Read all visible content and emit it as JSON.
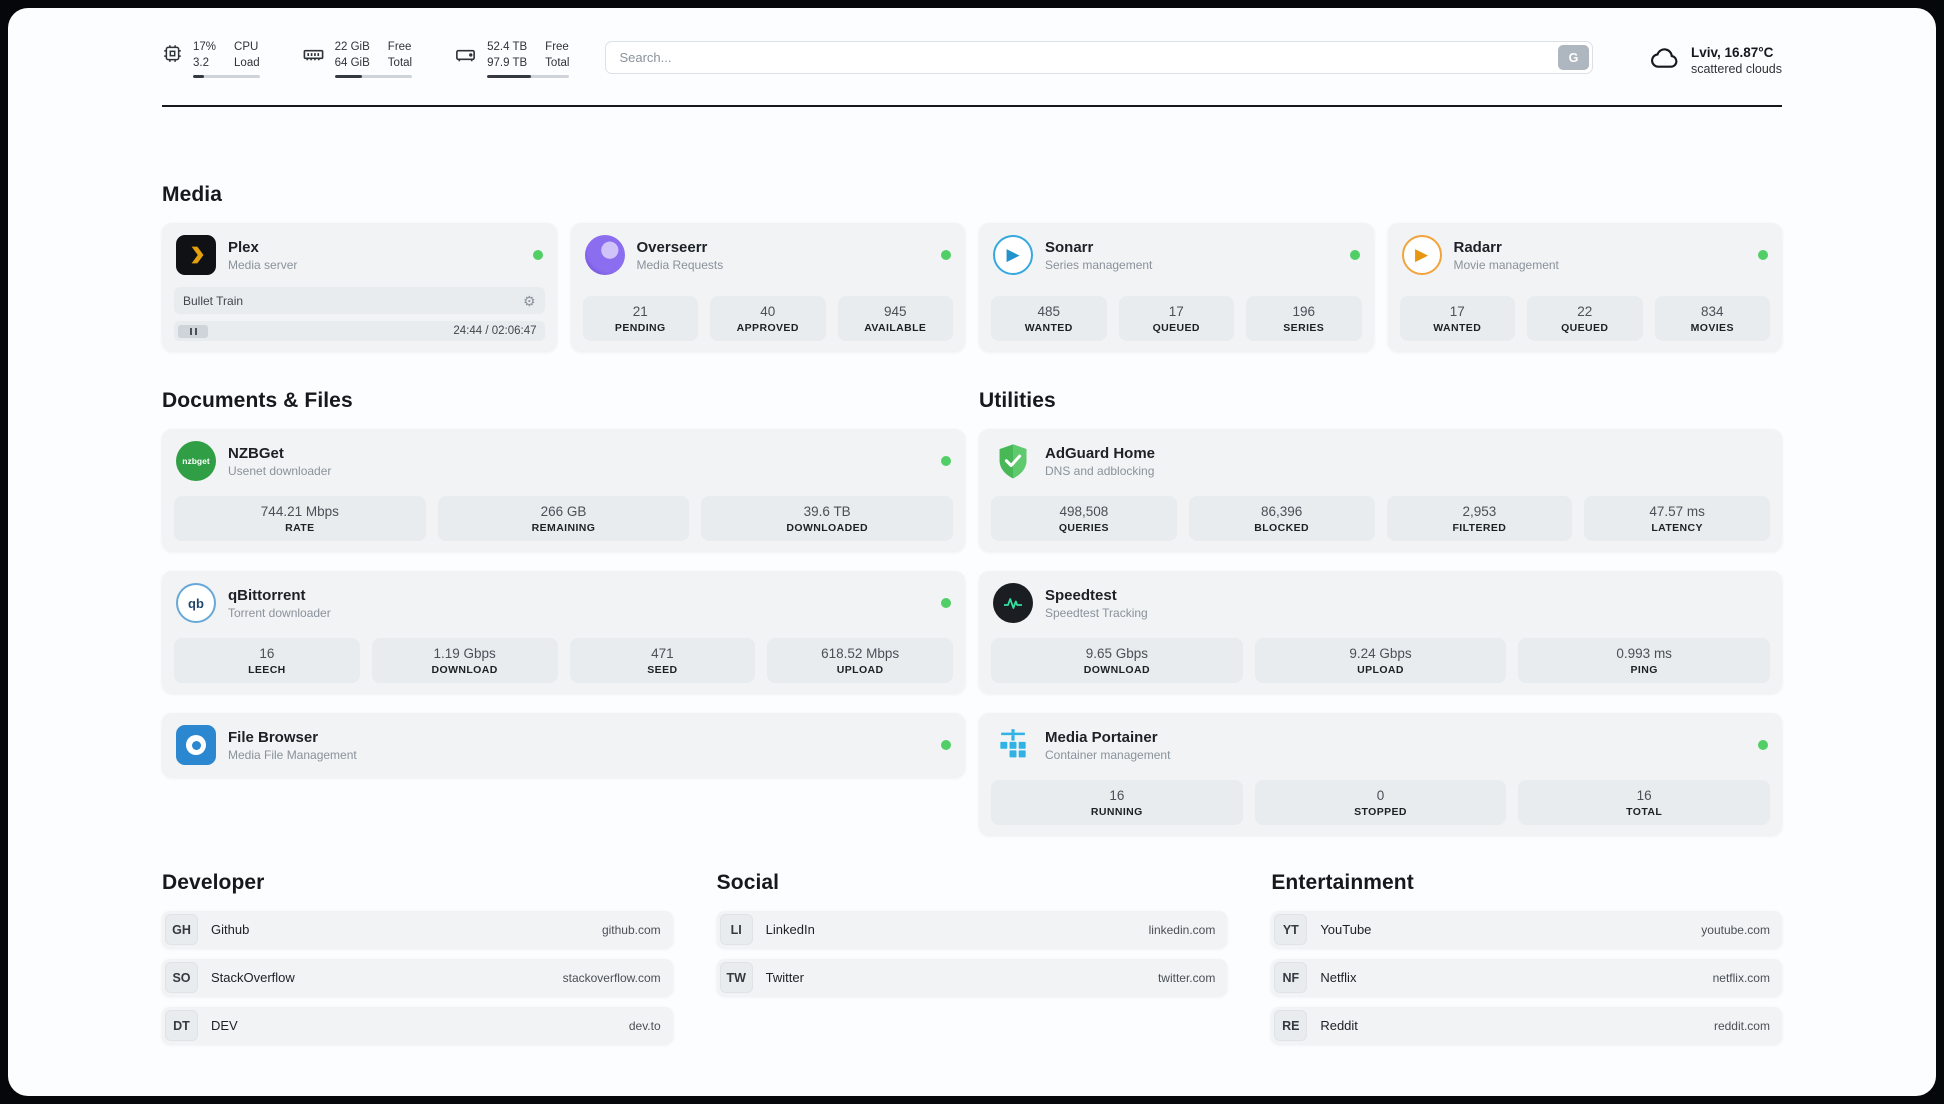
{
  "colors": {
    "status_online": "#51cf66",
    "progress_fill": "#343a40",
    "plex_accent": "#e5a00d",
    "overseerr_accent": "#6741d9",
    "sonarr_accent": "#35a8e0",
    "radarr_accent": "#f2a33c",
    "nzbget_accent": "#2f9e44",
    "qbittorrent_accent": "#68a8d8",
    "filebrowser_accent": "#2a87d0",
    "adguard_accent": "#48b857",
    "speedtest_accent": "#35e0a1",
    "portainer_accent": "#30b2e5"
  },
  "header": {
    "cpu": {
      "v1": "17%",
      "v2": "3.2",
      "l1": "CPU",
      "l2": "Load",
      "progress": 17
    },
    "ram": {
      "v1": "22 GiB",
      "v2": "64 GiB",
      "l1": "Free",
      "l2": "Total",
      "progress": 35
    },
    "disk": {
      "v1": "52.4 TB",
      "v2": "97.9 TB",
      "l1": "Free",
      "l2": "Total",
      "progress": 53
    },
    "search": {
      "placeholder": "Search...",
      "button": "G"
    },
    "weather": {
      "location": "Lviv, 16.87°C",
      "condition": "scattered clouds"
    }
  },
  "media": {
    "title": "Media",
    "plex": {
      "name": "Plex",
      "subtitle": "Media server",
      "player": {
        "title": "Bullet Train",
        "time": "24:44 / 02:06:47",
        "progress": 19
      }
    },
    "overseerr": {
      "name": "Overseerr",
      "subtitle": "Media Requests",
      "stats": [
        {
          "value": "21",
          "label": "PENDING"
        },
        {
          "value": "40",
          "label": "APPROVED"
        },
        {
          "value": "945",
          "label": "AVAILABLE"
        }
      ]
    },
    "sonarr": {
      "name": "Sonarr",
      "subtitle": "Series management",
      "stats": [
        {
          "value": "485",
          "label": "WANTED"
        },
        {
          "value": "17",
          "label": "QUEUED"
        },
        {
          "value": "196",
          "label": "SERIES"
        }
      ]
    },
    "radarr": {
      "name": "Radarr",
      "subtitle": "Movie management",
      "stats": [
        {
          "value": "17",
          "label": "WANTED"
        },
        {
          "value": "22",
          "label": "QUEUED"
        },
        {
          "value": "834",
          "label": "MOVIES"
        }
      ]
    }
  },
  "documents": {
    "title": "Documents & Files",
    "nzbget": {
      "name": "NZBGet",
      "subtitle": "Usenet downloader",
      "icon_text": "nzbget",
      "stats": [
        {
          "value": "744.21 Mbps",
          "label": "RATE"
        },
        {
          "value": "266 GB",
          "label": "REMAINING"
        },
        {
          "value": "39.6 TB",
          "label": "DOWNLOADED"
        }
      ]
    },
    "qbittorrent": {
      "name": "qBittorrent",
      "subtitle": "Torrent downloader",
      "icon_text": "qb",
      "stats": [
        {
          "value": "16",
          "label": "LEECH"
        },
        {
          "value": "1.19 Gbps",
          "label": "DOWNLOAD"
        },
        {
          "value": "471",
          "label": "SEED"
        },
        {
          "value": "618.52 Mbps",
          "label": "UPLOAD"
        }
      ]
    },
    "filebrowser": {
      "name": "File Browser",
      "subtitle": "Media File Management"
    }
  },
  "utilities": {
    "title": "Utilities",
    "adguard": {
      "name": "AdGuard Home",
      "subtitle": "DNS and adblocking",
      "stats": [
        {
          "value": "498,508",
          "label": "QUERIES"
        },
        {
          "value": "86,396",
          "label": "BLOCKED"
        },
        {
          "value": "2,953",
          "label": "FILTERED"
        },
        {
          "value": "47.57 ms",
          "label": "LATENCY"
        }
      ]
    },
    "speedtest": {
      "name": "Speedtest",
      "subtitle": "Speedtest Tracking",
      "stats": [
        {
          "value": "9.65 Gbps",
          "label": "DOWNLOAD"
        },
        {
          "value": "9.24 Gbps",
          "label": "UPLOAD"
        },
        {
          "value": "0.993 ms",
          "label": "PING"
        }
      ]
    },
    "portainer": {
      "name": "Media Portainer",
      "subtitle": "Container management",
      "stats": [
        {
          "value": "16",
          "label": "RUNNING"
        },
        {
          "value": "0",
          "label": "STOPPED"
        },
        {
          "value": "16",
          "label": "TOTAL"
        }
      ]
    }
  },
  "bookmarks": {
    "developer": {
      "title": "Developer",
      "links": [
        {
          "badge": "GH",
          "name": "Github",
          "url": "github.com"
        },
        {
          "badge": "SO",
          "name": "StackOverflow",
          "url": "stackoverflow.com"
        },
        {
          "badge": "DT",
          "name": "DEV",
          "url": "dev.to"
        }
      ]
    },
    "social": {
      "title": "Social",
      "links": [
        {
          "badge": "LI",
          "name": "LinkedIn",
          "url": "linkedin.com"
        },
        {
          "badge": "TW",
          "name": "Twitter",
          "url": "twitter.com"
        }
      ]
    },
    "entertainment": {
      "title": "Entertainment",
      "links": [
        {
          "badge": "YT",
          "name": "YouTube",
          "url": "youtube.com"
        },
        {
          "badge": "NF",
          "name": "Netflix",
          "url": "netflix.com"
        },
        {
          "badge": "RE",
          "name": "Reddit",
          "url": "reddit.com"
        }
      ]
    }
  }
}
